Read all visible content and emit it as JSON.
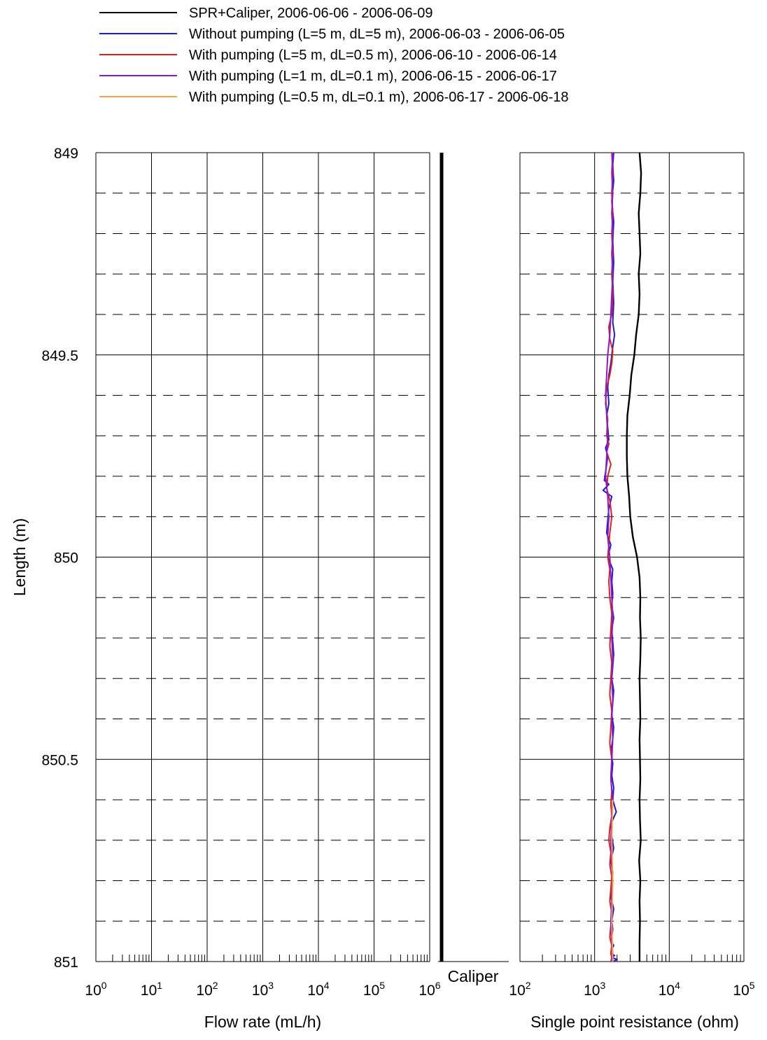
{
  "chart_data": {
    "type": "line",
    "legend": {
      "placement": "top",
      "entries": [
        {
          "label": "SPR+Caliper, 2006-06-06 - 2006-06-09",
          "color": "#000000"
        },
        {
          "label": "Without pumping (L=5 m, dL=5 m), 2006-06-03 - 2006-06-05",
          "color": "#1a1adb"
        },
        {
          "label": "With pumping  (L=5 m, dL=0.5 m), 2006-06-10 - 2006-06-14",
          "color": "#e01e1e"
        },
        {
          "label": "With pumping  (L=1 m, dL=0.1 m), 2006-06-15 - 2006-06-17",
          "color": "#8a1ad0"
        },
        {
          "label": "With pumping  (L=0.5 m, dL=0.1 m), 2006-06-17 - 2006-06-18",
          "color": "#f5a04a"
        }
      ]
    },
    "y_axis": {
      "label": "Length (m)",
      "range": [
        849,
        851
      ],
      "inverted": true,
      "ticks": [
        "849",
        "849.5",
        "850",
        "850.5",
        "851"
      ],
      "tick_values": [
        849,
        849.5,
        850,
        850.5,
        851
      ],
      "minor_step": 0.1
    },
    "flow_panel": {
      "xlabel": "Flow rate (mL/h)",
      "scale": "log",
      "xlim": [
        1,
        1000000
      ],
      "tick_values": [
        1,
        10,
        100,
        1000,
        10000,
        100000,
        1000000
      ],
      "tick_labels": [
        {
          "base": "10",
          "exp": "0"
        },
        {
          "base": "10",
          "exp": "1"
        },
        {
          "base": "10",
          "exp": "2"
        },
        {
          "base": "10",
          "exp": "3"
        },
        {
          "base": "10",
          "exp": "4"
        },
        {
          "base": "10",
          "exp": "5"
        },
        {
          "base": "10",
          "exp": "6"
        }
      ],
      "series": []
    },
    "caliper": {
      "label": "Caliper",
      "range": [
        849,
        851
      ]
    },
    "spr_panel": {
      "xlabel": "Single point resistance (ohm)",
      "scale": "log",
      "xlim": [
        100,
        100000
      ],
      "tick_values": [
        100,
        1000,
        10000,
        100000
      ],
      "tick_labels": [
        {
          "base": "10",
          "exp": "2"
        },
        {
          "base": "10",
          "exp": "3"
        },
        {
          "base": "10",
          "exp": "4"
        },
        {
          "base": "10",
          "exp": "5"
        }
      ],
      "series": [
        {
          "legend_index": 0,
          "color": "#000000",
          "x": [
            4000,
            4200,
            4100,
            3900,
            4000,
            4100,
            3900,
            4000,
            3900,
            3600,
            3400,
            3100,
            2950,
            2750,
            2700,
            2700,
            2750,
            2900,
            3000,
            3250,
            3700,
            4000,
            4100,
            4050,
            4150,
            4100,
            4000,
            4050,
            4100,
            4000,
            4050,
            4100,
            4000,
            4050,
            4150,
            3950,
            4100,
            4000,
            4050,
            4000,
            4000
          ],
          "y": [
            849.0,
            849.05,
            849.1,
            849.15,
            849.2,
            849.25,
            849.3,
            849.35,
            849.4,
            849.45,
            849.5,
            849.55,
            849.6,
            849.65,
            849.7,
            849.75,
            849.8,
            849.85,
            849.9,
            849.95,
            850.0,
            850.05,
            850.1,
            850.15,
            850.2,
            850.25,
            850.3,
            850.35,
            850.4,
            850.45,
            850.5,
            850.55,
            850.6,
            850.65,
            850.7,
            850.75,
            850.8,
            850.85,
            850.9,
            850.95,
            851.0
          ]
        },
        {
          "legend_index": 1,
          "color": "#1a1adb",
          "x": [
            1800,
            1750,
            1800,
            1700,
            1800,
            1750,
            1800,
            1750,
            1800,
            1750,
            1850,
            1750,
            1650,
            1550,
            1500,
            1550,
            1450,
            1500,
            1550,
            1400,
            1500,
            1450,
            1400,
            1350,
            1550,
            1300,
            1700,
            1550,
            1500,
            1450,
            1650,
            1500,
            1750,
            1700,
            1750,
            1700,
            1800,
            1700,
            1750,
            1800,
            1750,
            1700,
            1800,
            1750,
            1700,
            1800,
            1750,
            1650,
            1750,
            1700,
            1800,
            1750,
            1950,
            1650,
            1700,
            1800,
            1650,
            1750,
            1700,
            1650,
            1800,
            1700,
            1750,
            1700,
            1650,
            1800,
            1700,
            1650,
            1850,
            1700,
            2000,
            1750
          ],
          "y": [
            849.0,
            849.03,
            849.07,
            849.12,
            849.17,
            849.22,
            849.27,
            849.32,
            849.37,
            849.42,
            849.45,
            849.48,
            849.52,
            849.55,
            849.58,
            849.62,
            849.65,
            849.68,
            849.71,
            849.73,
            849.75,
            849.77,
            849.79,
            849.81,
            849.82,
            849.835,
            849.85,
            849.88,
            849.91,
            849.94,
            849.97,
            850.0,
            850.03,
            850.06,
            850.09,
            850.12,
            850.15,
            850.18,
            850.21,
            850.24,
            850.27,
            850.3,
            850.33,
            850.36,
            850.39,
            850.42,
            850.45,
            850.48,
            850.51,
            850.54,
            850.57,
            850.6,
            850.63,
            850.66,
            850.69,
            850.72,
            850.75,
            850.78,
            850.81,
            850.84,
            850.87,
            850.9,
            850.92,
            850.94,
            850.95,
            850.96,
            850.97,
            850.98,
            850.985,
            850.99,
            850.995,
            851.0
          ]
        },
        {
          "legend_index": 2,
          "color": "#e01e1e",
          "x": [
            1700,
            1750,
            1700,
            1750,
            1700,
            1750,
            1700,
            1750,
            1700,
            1550,
            1600,
            1750,
            1700,
            1600,
            1450,
            1400,
            1500,
            1450,
            1550,
            1450,
            1650,
            1500,
            1450,
            1600,
            1700,
            1600,
            1550,
            1500,
            1600,
            1550,
            1600,
            1700,
            1650,
            1600,
            1700,
            1650,
            1600,
            1700,
            1650,
            1600,
            1700,
            1650,
            1700,
            1650,
            1700,
            1600,
            1550,
            1650,
            1600,
            1700,
            1650,
            1600,
            1700,
            1650,
            1600,
            1700,
            1650,
            1700,
            1650
          ],
          "y": [
            849.0,
            849.05,
            849.1,
            849.15,
            849.2,
            849.25,
            849.3,
            849.35,
            849.4,
            849.43,
            849.46,
            849.49,
            849.52,
            849.55,
            849.58,
            849.62,
            849.66,
            849.7,
            849.72,
            849.74,
            849.77,
            849.8,
            849.83,
            849.86,
            849.9,
            849.94,
            849.97,
            850.0,
            850.03,
            850.06,
            850.1,
            850.14,
            850.18,
            850.22,
            850.26,
            850.3,
            850.34,
            850.38,
            850.42,
            850.46,
            850.5,
            850.54,
            850.58,
            850.61,
            850.64,
            850.67,
            850.7,
            850.73,
            850.76,
            850.79,
            850.82,
            850.85,
            850.88,
            850.91,
            850.94,
            850.96,
            850.98,
            850.99,
            851.0
          ]
        },
        {
          "legend_index": 3,
          "color": "#8a1ad0",
          "x": [
            1750,
            1700,
            1750,
            1700,
            1750,
            1700,
            1750,
            1700,
            1650,
            1600,
            1500,
            1450,
            1400,
            1450,
            1500,
            1450,
            1400,
            1500,
            1550,
            1500,
            1600,
            1650,
            1700,
            1750,
            1700,
            1750,
            1700,
            1750,
            1700,
            1750,
            1700,
            1650,
            1750,
            1700,
            1650,
            1700,
            1750,
            1700,
            1650,
            1700,
            1750,
            1700
          ],
          "y": [
            849.0,
            849.05,
            849.1,
            849.15,
            849.2,
            849.25,
            849.3,
            849.35,
            849.4,
            849.45,
            849.5,
            849.55,
            849.6,
            849.65,
            849.7,
            849.75,
            849.8,
            849.85,
            849.9,
            849.95,
            850.0,
            850.05,
            850.1,
            850.15,
            850.2,
            850.25,
            850.3,
            850.35,
            850.4,
            850.45,
            850.5,
            850.55,
            850.6,
            850.65,
            850.7,
            850.75,
            850.8,
            850.85,
            850.9,
            850.95,
            850.98,
            851.0
          ]
        },
        {
          "legend_index": 4,
          "color": "#f5a04a",
          "x": [
            1750,
            1700,
            1750,
            1700,
            1750
          ],
          "y": [
            850.6,
            850.7,
            850.8,
            850.9,
            851.0
          ]
        }
      ]
    }
  }
}
